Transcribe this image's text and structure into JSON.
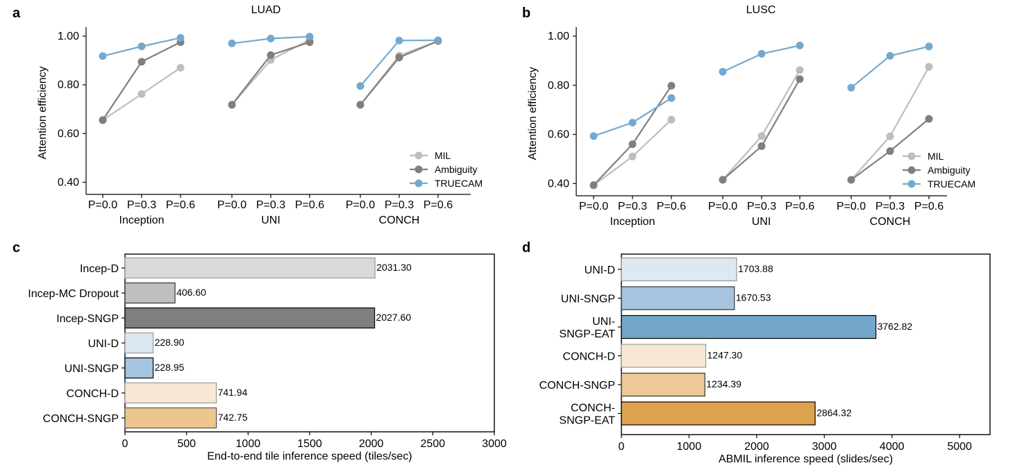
{
  "chart_data": [
    {
      "panel": "a",
      "type": "line",
      "title": "LUAD",
      "ylabel": "Attention efficiency",
      "ylim": [
        0.35,
        1.02
      ],
      "yticks": [
        "0.40",
        "0.60",
        "0.80",
        "1.00"
      ],
      "ytick_values": [
        0.4,
        0.6,
        0.8,
        1.0
      ],
      "xtick_labels": [
        "P=0.0",
        "P=0.3",
        "P=0.6"
      ],
      "groups": [
        "Inception",
        "UNI",
        "CONCH"
      ],
      "series": [
        {
          "name": "MIL",
          "color": "#bdbdbd",
          "values": [
            [
              0.655,
              0.762,
              0.87
            ],
            [
              0.718,
              0.902,
              0.985
            ],
            [
              0.718,
              0.92,
              0.98
            ]
          ]
        },
        {
          "name": "Ambiguity",
          "color": "#7f7f7f",
          "values": [
            [
              0.655,
              0.895,
              0.975
            ],
            [
              0.718,
              0.922,
              0.975
            ],
            [
              0.718,
              0.912,
              0.98
            ]
          ]
        },
        {
          "name": "TRUECAM",
          "color": "#74a9cf",
          "values": [
            [
              0.918,
              0.958,
              0.993
            ],
            [
              0.97,
              0.99,
              0.998
            ],
            [
              0.795,
              0.982,
              0.983
            ]
          ]
        }
      ],
      "legend_position": "bottom-right"
    },
    {
      "panel": "b",
      "type": "line",
      "title": "LUSC",
      "ylabel": "Attention efficiency",
      "ylim": [
        0.35,
        1.02
      ],
      "yticks": [
        "0.40",
        "0.60",
        "0.80",
        "1.00"
      ],
      "ytick_values": [
        0.4,
        0.6,
        0.8,
        1.0
      ],
      "xtick_labels": [
        "P=0.0",
        "P=0.3",
        "P=0.6"
      ],
      "groups": [
        "Inception",
        "UNI",
        "CONCH"
      ],
      "series": [
        {
          "name": "MIL",
          "color": "#bdbdbd",
          "values": [
            [
              0.393,
              0.51,
              0.66
            ],
            [
              0.415,
              0.593,
              0.862
            ],
            [
              0.415,
              0.592,
              0.875
            ]
          ]
        },
        {
          "name": "Ambiguity",
          "color": "#7f7f7f",
          "values": [
            [
              0.393,
              0.56,
              0.798
            ],
            [
              0.415,
              0.552,
              0.825
            ],
            [
              0.415,
              0.532,
              0.663
            ]
          ]
        },
        {
          "name": "TRUECAM",
          "color": "#74a9cf",
          "values": [
            [
              0.593,
              0.648,
              0.748
            ],
            [
              0.855,
              0.928,
              0.962
            ],
            [
              0.79,
              0.92,
              0.958
            ]
          ]
        }
      ],
      "legend_position": "bottom-right"
    },
    {
      "panel": "c",
      "type": "bar",
      "orientation": "horizontal",
      "xlabel": "End-to-end tile inference speed (tiles/sec)",
      "xlim": [
        0,
        3000
      ],
      "xticks": [
        0,
        500,
        1000,
        1500,
        2000,
        2500,
        3000
      ],
      "categories": [
        "Incep-D",
        "Incep-MC Dropout",
        "Incep-SNGP",
        "UNI-D",
        "UNI-SNGP",
        "CONCH-D",
        "CONCH-SNGP"
      ],
      "values": [
        2031.3,
        406.6,
        2027.6,
        228.9,
        228.95,
        741.94,
        742.75
      ],
      "value_labels": [
        "2031.30",
        "406.60",
        "2027.60",
        "228.90",
        "228.95",
        "741.94",
        "742.75"
      ],
      "colors": [
        "#d9d9d9",
        "#bfbfbf",
        "#7f7f7f",
        "#dbe7f1",
        "#a6c4de",
        "#f7e8d4",
        "#ecc68e"
      ],
      "edgecolors": [
        "#999999",
        "#333333",
        "#000000",
        "#999999",
        "#000000",
        "#999999",
        "#555555"
      ]
    },
    {
      "panel": "d",
      "type": "bar",
      "orientation": "horizontal",
      "xlabel": "ABMIL inference speed (slides/sec)",
      "xlim": [
        0,
        5450
      ],
      "xticks": [
        0,
        1000,
        2000,
        3000,
        4000,
        5000
      ],
      "categories": [
        [
          "UNI-D"
        ],
        [
          "UNI-SNGP"
        ],
        [
          "UNI-",
          "SNGP-EAT"
        ],
        [
          "CONCH-D"
        ],
        [
          "CONCH-SNGP"
        ],
        [
          "CONCH-",
          "SNGP-EAT"
        ]
      ],
      "values": [
        1703.88,
        1670.53,
        3762.82,
        1247.3,
        1234.39,
        2864.32
      ],
      "value_labels": [
        "1703.88",
        "1670.53",
        "3762.82",
        "1247.30",
        "1234.39",
        "2864.32"
      ],
      "colors": [
        "#dce8f2",
        "#a6c4de",
        "#72a7cb",
        "#f7e8d5",
        "#ecc995",
        "#dea24f"
      ],
      "edgecolors": [
        "#999999",
        "#333333",
        "#000000",
        "#999999",
        "#333333",
        "#000000"
      ]
    }
  ]
}
